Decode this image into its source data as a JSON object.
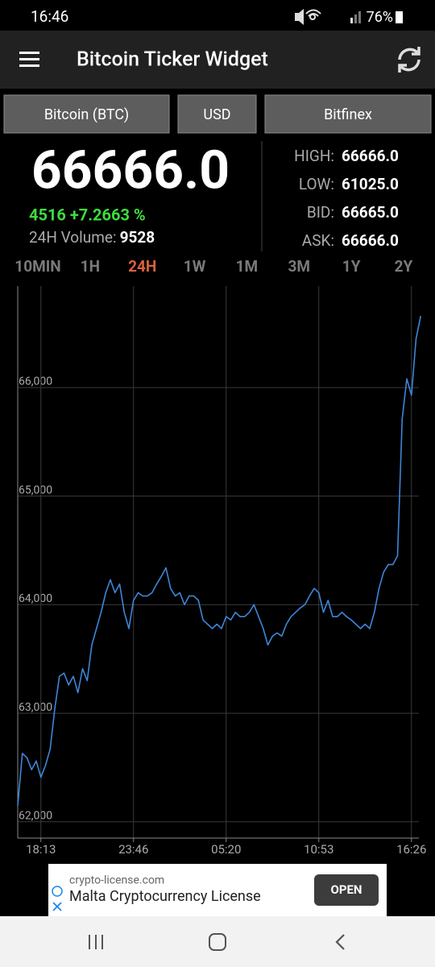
{
  "status_bar": {
    "time": "16:46",
    "battery": "76%"
  },
  "app_bar": {
    "title": "Bitcoin Ticker Widget"
  },
  "selectors": [
    "Bitcoin (BTC)",
    "USD",
    "Bitfinex"
  ],
  "ticker": {
    "price": "66666.0",
    "change": "4516 +7.2663 %",
    "volume_label": "24H Volume:",
    "volume": "9528",
    "stats": [
      {
        "label": "HIGH:",
        "value": "66666.0"
      },
      {
        "label": "LOW:",
        "value": "61025.0"
      },
      {
        "label": "BID:",
        "value": "66665.0"
      },
      {
        "label": "ASK:",
        "value": "66666.0"
      }
    ]
  },
  "ranges": [
    "10MIN",
    "1H",
    "24H",
    "1W",
    "1M",
    "3M",
    "1Y",
    "2Y"
  ],
  "selected_range_index": 2,
  "chart_data": {
    "type": "line",
    "color": "#3d86d8",
    "grid": true,
    "categories": [
      null,
      null,
      null,
      null,
      null,
      "18:13",
      null,
      null,
      null,
      null,
      null,
      null,
      null,
      null,
      null,
      null,
      null,
      null,
      null,
      null,
      null,
      null,
      null,
      null,
      null,
      "23:46",
      null,
      null,
      null,
      null,
      null,
      null,
      null,
      null,
      null,
      null,
      null,
      null,
      null,
      null,
      null,
      null,
      null,
      null,
      null,
      "05:20",
      null,
      null,
      null,
      null,
      null,
      null,
      null,
      null,
      null,
      null,
      null,
      null,
      null,
      null,
      null,
      null,
      null,
      null,
      null,
      "10:53",
      null,
      null,
      null,
      null,
      null,
      null,
      null,
      null,
      null,
      null,
      null,
      null,
      null,
      null,
      null,
      null,
      null,
      null,
      null,
      "16:26",
      null,
      null
    ],
    "values": [
      62150,
      62630,
      62590,
      62480,
      62560,
      62410,
      62520,
      62670,
      63040,
      63340,
      63370,
      63260,
      63340,
      63190,
      63410,
      63300,
      63630,
      63780,
      63930,
      64110,
      64230,
      64110,
      64190,
      63930,
      63780,
      64040,
      64110,
      64080,
      64080,
      64110,
      64190,
      64260,
      64340,
      64150,
      64080,
      64110,
      64000,
      64080,
      64080,
      64040,
      63860,
      63820,
      63780,
      63820,
      63780,
      63890,
      63860,
      63930,
      63890,
      63890,
      63930,
      64000,
      63890,
      63780,
      63630,
      63710,
      63740,
      63710,
      63820,
      63890,
      63930,
      63970,
      64000,
      64080,
      64150,
      64110,
      63930,
      64040,
      63890,
      63890,
      63930,
      63890,
      63860,
      63820,
      63780,
      63820,
      63780,
      63930,
      64150,
      64300,
      64370,
      64370,
      64450,
      65710,
      66080,
      65930,
      66450,
      66660
    ],
    "ylim": [
      61850,
      66935
    ],
    "yticks": [
      {
        "value": 62000,
        "label": "62,000"
      },
      {
        "value": 63000,
        "label": "63,000"
      },
      {
        "value": 64000,
        "label": "64,000"
      },
      {
        "value": 65000,
        "label": "65,000"
      },
      {
        "value": 66000,
        "label": "66,000"
      }
    ]
  },
  "ad": {
    "domain": "crypto-license.com",
    "headline": "Malta Cryptocurrency License",
    "button": "OPEN"
  }
}
